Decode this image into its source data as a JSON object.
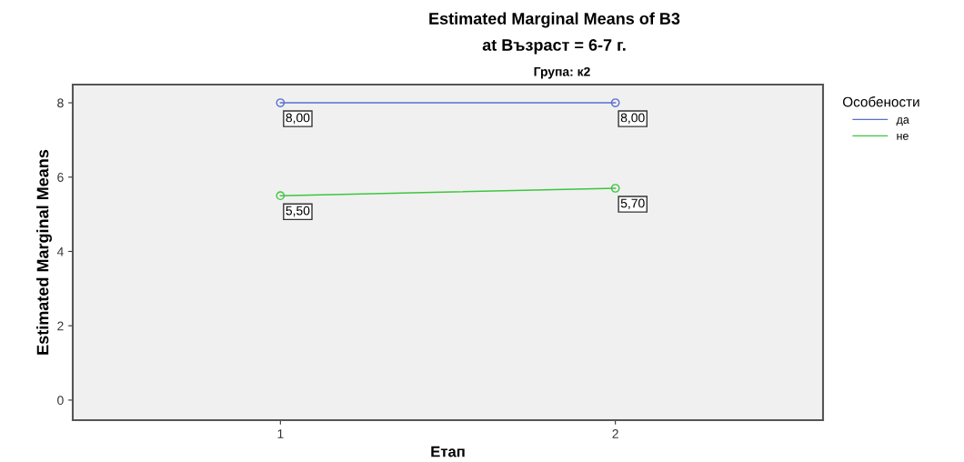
{
  "chart_data": {
    "type": "line",
    "title": "Estimated Marginal Means of В3",
    "subtitle": "at Възраст = 6-7 г.",
    "annotations": [
      "Група: к2"
    ],
    "xlabel": "Етап",
    "ylabel": "Estimated Marginal Means",
    "legend_title": "Особености",
    "legend": "right",
    "categories": [
      "1",
      "2"
    ],
    "series": [
      {
        "name": "да",
        "color": "#5a6fd0",
        "values": [
          8.0,
          8.0
        ],
        "value_labels": [
          "8,00",
          "8,00"
        ]
      },
      {
        "name": "не",
        "color": "#3cc63c",
        "values": [
          5.5,
          5.7
        ],
        "value_labels": [
          "5,50",
          "5,70"
        ]
      }
    ],
    "ylim": [
      -0.54,
      8.49
    ],
    "yticks": [
      0,
      2,
      4,
      6,
      8
    ],
    "grid": false,
    "marker": "circle",
    "line_style": "solid"
  }
}
